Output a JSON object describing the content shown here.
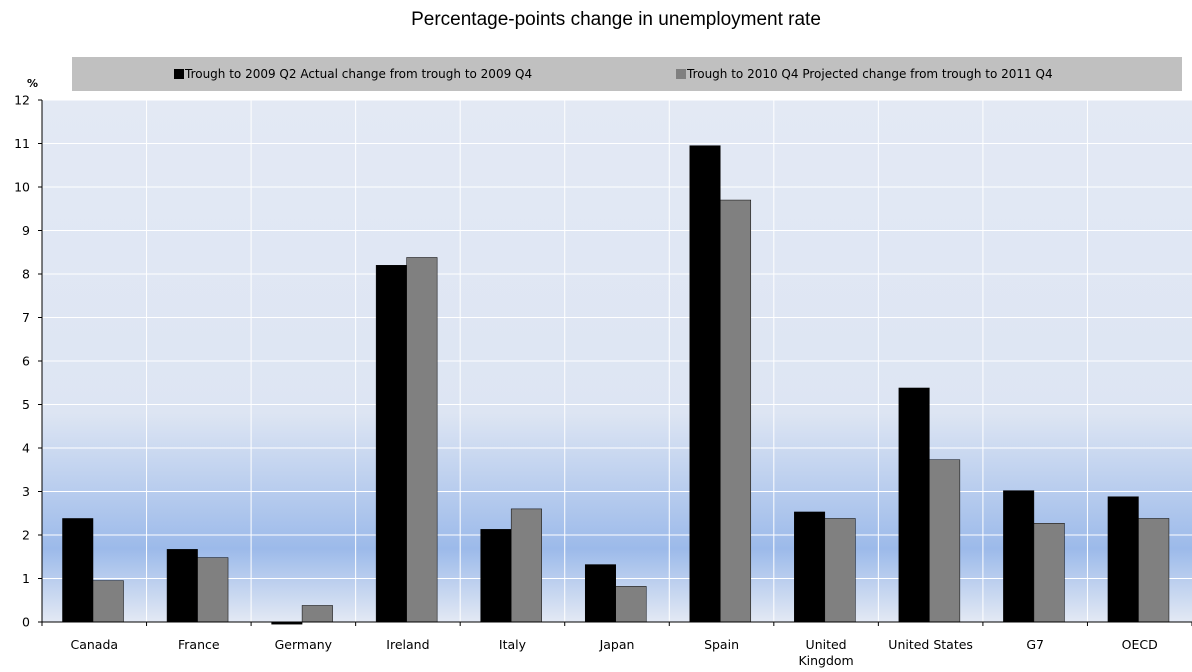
{
  "chart_data": {
    "type": "bar",
    "title": "Percentage-points change in unemployment rate",
    "y_unit": "%",
    "ylim": [
      0,
      12
    ],
    "y_ticks": [
      0,
      1,
      2,
      3,
      4,
      5,
      6,
      7,
      8,
      9,
      10,
      11,
      12
    ],
    "grid": true,
    "legend_position": "top",
    "categories": [
      "Canada",
      "France",
      "Germany",
      "Ireland",
      "Italy",
      "Japan",
      "Spain",
      "United Kingdom",
      "United States",
      "G7",
      "OECD"
    ],
    "category_labels": [
      [
        "Canada"
      ],
      [
        "France"
      ],
      [
        "Germany"
      ],
      [
        "Ireland"
      ],
      [
        "Italy"
      ],
      [
        "Japan"
      ],
      [
        "Spain"
      ],
      [
        "United",
        "Kingdom"
      ],
      [
        "United States"
      ],
      [
        "G7"
      ],
      [
        "OECD"
      ]
    ],
    "series": [
      {
        "name": "Trough to 2009 Q2 Actual change from trough to 2009 Q4",
        "color": "#000000",
        "values": [
          2.38,
          1.67,
          -0.05,
          8.2,
          2.13,
          1.32,
          10.95,
          2.53,
          5.38,
          3.02,
          2.88
        ]
      },
      {
        "name": "Trough to 2010 Q4 Projected change from trough to 2011 Q4",
        "color": "#808080",
        "values": [
          0.95,
          1.48,
          0.38,
          8.38,
          2.6,
          0.82,
          9.7,
          2.38,
          3.73,
          2.27,
          2.38
        ]
      }
    ],
    "colors": {
      "plot_top": "#e3e9f4",
      "plot_band": "#9cbaea",
      "legend_bg": "#c0c0c0",
      "gridline": "#ffffff"
    }
  }
}
